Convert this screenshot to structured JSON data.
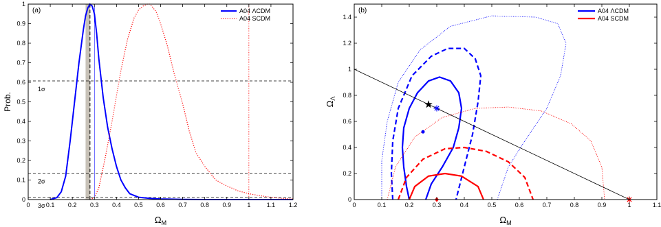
{
  "chart_data": [
    {
      "type": "line",
      "panel_label": "(a)",
      "xlabel": "Ω_M",
      "ylabel": "Prob.",
      "xlim": [
        0,
        1.2
      ],
      "ylim": [
        0,
        1
      ],
      "xticks": [
        "0",
        "0.1",
        "0.2",
        "0.3",
        "0.4",
        "0.5",
        "0.6",
        "0.7",
        "0.8",
        "0.9",
        "1",
        "1.1",
        "1.2"
      ],
      "yticks": [
        "0",
        "0.1",
        "0.2",
        "0.3",
        "0.4",
        "0.5",
        "0.6",
        "0.7",
        "0.8",
        "0.9",
        "1"
      ],
      "legend": {
        "position": "top-right"
      },
      "series": [
        {
          "name": "A04 ΛCDM",
          "style": "solid",
          "color": "#0000ff",
          "x": [
            0.1,
            0.13,
            0.15,
            0.17,
            0.19,
            0.21,
            0.23,
            0.25,
            0.26,
            0.27,
            0.28,
            0.29,
            0.3,
            0.31,
            0.32,
            0.34,
            0.36,
            0.38,
            0.4,
            0.42,
            0.44,
            0.46,
            0.5,
            0.55,
            0.6,
            0.7,
            0.8,
            1.0,
            1.2
          ],
          "y": [
            0.0,
            0.01,
            0.04,
            0.12,
            0.3,
            0.5,
            0.7,
            0.87,
            0.94,
            0.98,
            1.0,
            0.99,
            0.95,
            0.85,
            0.72,
            0.52,
            0.37,
            0.26,
            0.17,
            0.1,
            0.06,
            0.03,
            0.012,
            0.006,
            0.003,
            0.001,
            0.0,
            0.0,
            0.0
          ]
        },
        {
          "name": "A04 SCDM",
          "style": "dotted",
          "color": "#ff0000",
          "x": [
            0.28,
            0.3,
            0.32,
            0.35,
            0.38,
            0.4,
            0.42,
            0.45,
            0.48,
            0.5,
            0.52,
            0.54,
            0.55,
            0.56,
            0.58,
            0.6,
            0.63,
            0.66,
            0.7,
            0.73,
            0.76,
            0.8,
            0.85,
            0.9,
            0.95,
            1.0,
            1.05,
            1.1,
            1.15,
            1.2
          ],
          "y": [
            0.0,
            0.01,
            0.06,
            0.22,
            0.4,
            0.53,
            0.66,
            0.82,
            0.93,
            0.97,
            0.99,
            1.0,
            1.0,
            0.99,
            0.96,
            0.9,
            0.79,
            0.65,
            0.49,
            0.35,
            0.24,
            0.17,
            0.1,
            0.07,
            0.045,
            0.03,
            0.02,
            0.012,
            0.006,
            0.003
          ]
        }
      ],
      "vertical_lines": [
        {
          "x": 0.28,
          "style": "dashed",
          "color": "#000000"
        },
        {
          "x": 1.0,
          "style": "dotted",
          "color": "#ff0000"
        }
      ],
      "shaded_band": {
        "x": [
          0.26,
          0.28
        ],
        "color": "#c8c2b8"
      },
      "thin_marker_line": {
        "x": 0.3,
        "color": "#0000ff"
      },
      "horizontal_lines": [
        {
          "y": 0.607,
          "label": "1σ"
        },
        {
          "y": 0.135,
          "label": "2σ"
        },
        {
          "y": 0.011,
          "label": "3σ"
        }
      ]
    },
    {
      "type": "scatter",
      "panel_label": "(b)",
      "xlabel": "Ω_M",
      "ylabel": "Ω_Λ",
      "xlim": [
        0,
        1.1
      ],
      "ylim": [
        0,
        1.5
      ],
      "xticks": [
        "0",
        "0.1",
        "0.2",
        "0.3",
        "0.4",
        "0.5",
        "0.6",
        "0.7",
        "0.8",
        "0.9",
        "1",
        "1.1"
      ],
      "yticks": [
        "0",
        "0.2",
        "0.4",
        "0.6",
        "0.8",
        "1",
        "1.2",
        "1.4"
      ],
      "legend": {
        "position": "top-right"
      },
      "series": [
        {
          "name": "A04 ΛCDM",
          "color": "#0000ff"
        },
        {
          "name": "A04 SCDM",
          "color": "#ff0000"
        }
      ],
      "contours": [
        {
          "color": "#0000ff",
          "style": "solid",
          "points": [
            [
              0.2,
              0
            ],
            [
              0.19,
              0.1
            ],
            [
              0.18,
              0.25
            ],
            [
              0.175,
              0.4
            ],
            [
              0.18,
              0.55
            ],
            [
              0.2,
              0.7
            ],
            [
              0.23,
              0.82
            ],
            [
              0.27,
              0.91
            ],
            [
              0.31,
              0.94
            ],
            [
              0.35,
              0.91
            ],
            [
              0.38,
              0.82
            ],
            [
              0.39,
              0.7
            ],
            [
              0.38,
              0.55
            ],
            [
              0.36,
              0.4
            ],
            [
              0.32,
              0.25
            ],
            [
              0.28,
              0.12
            ],
            [
              0.26,
              0
            ]
          ]
        },
        {
          "color": "#0000ff",
          "style": "dashed",
          "points": [
            [
              0.14,
              0
            ],
            [
              0.135,
              0.2
            ],
            [
              0.14,
              0.45
            ],
            [
              0.16,
              0.7
            ],
            [
              0.21,
              0.95
            ],
            [
              0.28,
              1.1
            ],
            [
              0.34,
              1.16
            ],
            [
              0.4,
              1.16
            ],
            [
              0.44,
              1.08
            ],
            [
              0.46,
              0.95
            ],
            [
              0.45,
              0.75
            ],
            [
              0.43,
              0.5
            ],
            [
              0.4,
              0.25
            ],
            [
              0.37,
              0
            ]
          ]
        },
        {
          "color": "#0000ff",
          "style": "dotted",
          "points": [
            [
              0.1,
              0
            ],
            [
              0.1,
              0.3
            ],
            [
              0.12,
              0.6
            ],
            [
              0.16,
              0.9
            ],
            [
              0.24,
              1.15
            ],
            [
              0.35,
              1.33
            ],
            [
              0.5,
              1.41
            ],
            [
              0.66,
              1.4
            ],
            [
              0.74,
              1.35
            ],
            [
              0.77,
              1.2
            ],
            [
              0.75,
              0.95
            ],
            [
              0.7,
              0.7
            ],
            [
              0.62,
              0.45
            ],
            [
              0.56,
              0.25
            ],
            [
              0.52,
              0
            ]
          ]
        },
        {
          "color": "#ff0000",
          "style": "solid",
          "points": [
            [
              0.2,
              0
            ],
            [
              0.22,
              0.1
            ],
            [
              0.27,
              0.18
            ],
            [
              0.33,
              0.2
            ],
            [
              0.39,
              0.18
            ],
            [
              0.45,
              0.1
            ],
            [
              0.47,
              0
            ]
          ]
        },
        {
          "color": "#ff0000",
          "style": "dashed",
          "points": [
            [
              0.16,
              0
            ],
            [
              0.19,
              0.17
            ],
            [
              0.25,
              0.31
            ],
            [
              0.33,
              0.39
            ],
            [
              0.4,
              0.4
            ],
            [
              0.48,
              0.37
            ],
            [
              0.56,
              0.29
            ],
            [
              0.62,
              0.17
            ],
            [
              0.65,
              0
            ]
          ]
        },
        {
          "color": "#ff0000",
          "style": "dotted",
          "points": [
            [
              0.12,
              0
            ],
            [
              0.15,
              0.25
            ],
            [
              0.22,
              0.48
            ],
            [
              0.32,
              0.63
            ],
            [
              0.44,
              0.7
            ],
            [
              0.56,
              0.71
            ],
            [
              0.68,
              0.68
            ],
            [
              0.79,
              0.58
            ],
            [
              0.86,
              0.45
            ],
            [
              0.9,
              0.25
            ],
            [
              0.91,
              0
            ]
          ]
        }
      ],
      "flat_line": {
        "from": [
          0,
          1
        ],
        "to": [
          1,
          0
        ],
        "color": "#000000"
      },
      "markers": [
        {
          "x": 0.27,
          "y": 0.73,
          "symbol": "star",
          "color": "#000000"
        },
        {
          "x": 0.3,
          "y": 0.7,
          "symbol": "asterisk",
          "color": "#0000ff"
        },
        {
          "x": 0.25,
          "y": 0.52,
          "symbol": "dot",
          "color": "#0000ff"
        },
        {
          "x": 0.3,
          "y": 0.0,
          "symbol": "diamond",
          "color": "#ff0000"
        },
        {
          "x": 1.0,
          "y": 0.0,
          "symbol": "asterisk",
          "color": "#ff0000"
        }
      ]
    }
  ]
}
